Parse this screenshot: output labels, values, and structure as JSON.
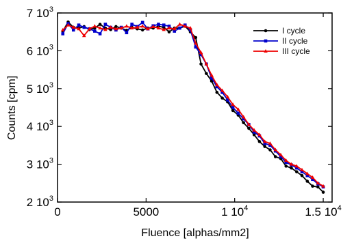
{
  "chart_data": {
    "type": "line",
    "xlabel": "Fluence [alphas/mm2]",
    "ylabel": "Counts [cpm]",
    "xlim": [
      0,
      15500
    ],
    "ylim": [
      2000,
      7000
    ],
    "grid": false,
    "legend_position": "top-right",
    "x_ticks": [
      {
        "value": 0,
        "label": "0",
        "sup": ""
      },
      {
        "value": 5000,
        "label": "5000",
        "sup": ""
      },
      {
        "value": 10000,
        "label": "1 10",
        "sup": "4"
      },
      {
        "value": 15000,
        "label": "1.5 10",
        "sup": "4"
      }
    ],
    "y_ticks": [
      {
        "value": 2000,
        "label": "2 10",
        "sup": "3"
      },
      {
        "value": 3000,
        "label": "3 10",
        "sup": "3"
      },
      {
        "value": 4000,
        "label": "4 10",
        "sup": "3"
      },
      {
        "value": 5000,
        "label": "5 10",
        "sup": "3"
      },
      {
        "value": 6000,
        "label": "6 10",
        "sup": "3"
      },
      {
        "value": 7000,
        "label": "7 10",
        "sup": "3"
      }
    ],
    "series": [
      {
        "name": "I cycle",
        "color": "#000000",
        "marker": "circle",
        "x": [
          300,
          600,
          900,
          1200,
          1500,
          1800,
          2100,
          2400,
          2700,
          3000,
          3300,
          3600,
          3900,
          4200,
          4500,
          4800,
          5100,
          5400,
          5700,
          6000,
          6300,
          6600,
          6900,
          7200,
          7500,
          7800,
          8100,
          8400,
          8700,
          9000,
          9300,
          9600,
          9900,
          10200,
          10500,
          10800,
          11100,
          11400,
          11700,
          12000,
          12300,
          12600,
          12900,
          13200,
          13500,
          13800,
          14100,
          14400,
          14700,
          15000
        ],
        "values": [
          6520,
          6760,
          6620,
          6600,
          6640,
          6560,
          6600,
          6700,
          6600,
          6560,
          6640,
          6600,
          6540,
          6620,
          6580,
          6550,
          6600,
          6600,
          6650,
          6620,
          6500,
          6600,
          6600,
          6650,
          6500,
          6350,
          5650,
          5400,
          5200,
          4900,
          4750,
          4650,
          4420,
          4300,
          4100,
          3950,
          3780,
          3600,
          3470,
          3380,
          3200,
          3150,
          2950,
          2900,
          2800,
          2700,
          2550,
          2420,
          2400,
          2260
        ]
      },
      {
        "name": "II cycle",
        "color": "#0000cc",
        "marker": "square",
        "x": [
          300,
          600,
          900,
          1200,
          1500,
          1800,
          2100,
          2400,
          2700,
          3000,
          3300,
          3600,
          3900,
          4200,
          4500,
          4800,
          5100,
          5400,
          5700,
          6000,
          6300,
          6600,
          6900,
          7200,
          7500,
          7800,
          8100,
          8400,
          8700,
          9000,
          9300,
          9600,
          9900,
          10200,
          10500,
          10800,
          11100,
          11400,
          11700,
          12000,
          12300,
          12600,
          12900,
          13200,
          13500,
          13800,
          14100,
          14400,
          14700,
          15000
        ],
        "values": [
          6450,
          6720,
          6550,
          6680,
          6620,
          6580,
          6520,
          6450,
          6700,
          6620,
          6550,
          6620,
          6480,
          6700,
          6640,
          6750,
          6580,
          6660,
          6700,
          6680,
          6650,
          6520,
          6600,
          6680,
          6550,
          6100,
          5900,
          5650,
          5280,
          5050,
          4900,
          4700,
          4500,
          4350,
          4200,
          4050,
          3850,
          3750,
          3550,
          3500,
          3350,
          3200,
          3050,
          2980,
          2900,
          2800,
          2700,
          2600,
          2480,
          2400
        ]
      },
      {
        "name": "III cycle",
        "color": "#ee0000",
        "marker": "triangle",
        "x": [
          300,
          600,
          900,
          1200,
          1500,
          1800,
          2100,
          2400,
          2700,
          3000,
          3300,
          3600,
          3900,
          4200,
          4500,
          4800,
          5100,
          5400,
          5700,
          6000,
          6300,
          6600,
          6900,
          7200,
          7500,
          7800,
          8100,
          8400,
          8700,
          9000,
          9300,
          9600,
          9900,
          10200,
          10500,
          10800,
          11100,
          11400,
          11700,
          12000,
          12300,
          12600,
          12900,
          13200,
          13500,
          13800,
          14100,
          14400,
          14700,
          15000
        ],
        "values": [
          6550,
          6680,
          6620,
          6580,
          6400,
          6580,
          6650,
          6600,
          6560,
          6620,
          6580,
          6600,
          6650,
          6600,
          6620,
          6650,
          6580,
          6640,
          6600,
          6560,
          6600,
          6580,
          6700,
          6650,
          6600,
          6200,
          5950,
          5650,
          5350,
          5100,
          4950,
          4780,
          4580,
          4450,
          4250,
          4050,
          3900,
          3780,
          3600,
          3550,
          3380,
          3250,
          3100,
          3000,
          2950,
          2850,
          2750,
          2650,
          2500,
          2420
        ]
      }
    ]
  }
}
